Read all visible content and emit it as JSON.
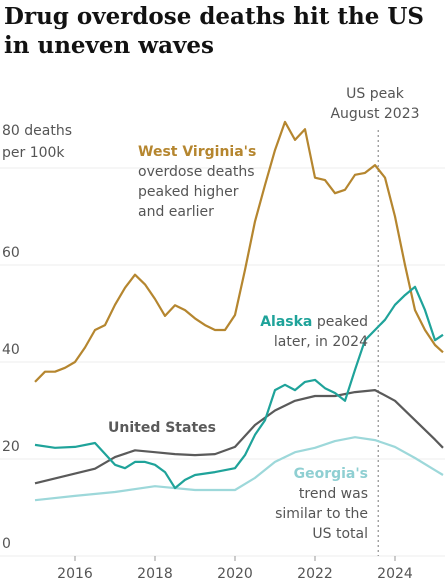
{
  "chart_data": {
    "type": "line",
    "title": "Drug overdose deaths hit the US in uneven waves",
    "xlim": [
      2015,
      2025.25
    ],
    "xticks": [
      2016,
      2018,
      2020,
      2022,
      2024
    ],
    "ylim": [
      0,
      94
    ],
    "yticks": [
      0,
      20,
      40,
      60,
      {
        "value": 80,
        "label": "80 deaths per 100k"
      }
    ],
    "reference_line": {
      "x": 2023.58,
      "label": "US peak August 2023"
    },
    "series": [
      {
        "name": "West Virginia",
        "color": "#b5862f",
        "x": [
          2015,
          2015.25,
          2015.5,
          2015.75,
          2016,
          2016.25,
          2016.5,
          2016.75,
          2017,
          2017.25,
          2017.5,
          2017.75,
          2018,
          2018.25,
          2018.5,
          2018.75,
          2019,
          2019.25,
          2019.5,
          2019.75,
          2020,
          2020.25,
          2020.5,
          2020.75,
          2021,
          2021.25,
          2021.5,
          2021.75,
          2022,
          2022.25,
          2022.5,
          2022.75,
          2023,
          2023.25,
          2023.5,
          2023.75,
          2024,
          2024.25,
          2024.5,
          2024.75,
          2025,
          2025.2
        ],
        "values": [
          35.9,
          38,
          38,
          38.8,
          40,
          43,
          46.6,
          47.6,
          51.8,
          55.3,
          58,
          56,
          53,
          49.5,
          51.7,
          50.7,
          49,
          47.6,
          46.6,
          46.6,
          49.7,
          59,
          69,
          76.5,
          83.7,
          89.5,
          85.8,
          88,
          78,
          77.5,
          74.8,
          75.5,
          78.6,
          79,
          80.6,
          78,
          70,
          60,
          50.7,
          46.6,
          43.5,
          42
        ]
      },
      {
        "name": "United States",
        "color": "#5a5a5a",
        "x": [
          2015,
          2016,
          2016.5,
          2017,
          2017.5,
          2018,
          2018.5,
          2019,
          2019.5,
          2020,
          2020.5,
          2021,
          2021.5,
          2022,
          2022.5,
          2023,
          2023.5,
          2024,
          2024.5,
          2025,
          2025.2
        ],
        "values": [
          15,
          17,
          18,
          20.4,
          21.8,
          21.4,
          21,
          20.8,
          21,
          22.5,
          27,
          30,
          32,
          33,
          33,
          33.8,
          34.2,
          32,
          28,
          24,
          22.3
        ]
      },
      {
        "name": "Alaska",
        "color": "#1fa39a",
        "x": [
          2015,
          2015.5,
          2016,
          2016.5,
          2017,
          2017.25,
          2017.5,
          2017.75,
          2018,
          2018.25,
          2018.5,
          2018.75,
          2019,
          2019.5,
          2020,
          2020.25,
          2020.5,
          2020.75,
          2021,
          2021.25,
          2021.5,
          2021.75,
          2022,
          2022.25,
          2022.5,
          2022.75,
          2023,
          2023.25,
          2023.5,
          2023.75,
          2024,
          2024.25,
          2024.5,
          2024.75,
          2025,
          2025.2
        ],
        "values": [
          22.9,
          22.3,
          22.5,
          23.3,
          18.8,
          18.1,
          19.4,
          19.4,
          18.8,
          17.3,
          14,
          15.7,
          16.7,
          17.3,
          18.1,
          20.8,
          25,
          28,
          34.2,
          35.3,
          34.2,
          35.9,
          36.3,
          34.6,
          33.6,
          32,
          38.4,
          44.5,
          46.6,
          48.7,
          51.8,
          53.8,
          55.5,
          50.7,
          44.5,
          45.6
        ]
      },
      {
        "name": "Georgia",
        "color": "#9dd8da",
        "x": [
          2015,
          2016,
          2017,
          2018,
          2019,
          2020,
          2020.5,
          2021,
          2021.5,
          2022,
          2022.5,
          2023,
          2023.5,
          2024,
          2024.5,
          2025,
          2025.2
        ],
        "values": [
          11.5,
          12.4,
          13.2,
          14.4,
          13.6,
          13.6,
          16.1,
          19.4,
          21.4,
          22.3,
          23.7,
          24.5,
          23.9,
          22.5,
          20.2,
          17.7,
          16.7
        ]
      }
    ],
    "annotations": {
      "west_virginia": {
        "bold": "West Virginia's",
        "text": "overdose deaths peaked higher and earlier"
      },
      "alaska": {
        "bold": "Alaska",
        "text": "peaked later, in 2024"
      },
      "united_states": {
        "bold": "United States"
      },
      "georgia": {
        "bold": "Georgia's",
        "text": "trend was similar to the US total"
      }
    }
  }
}
